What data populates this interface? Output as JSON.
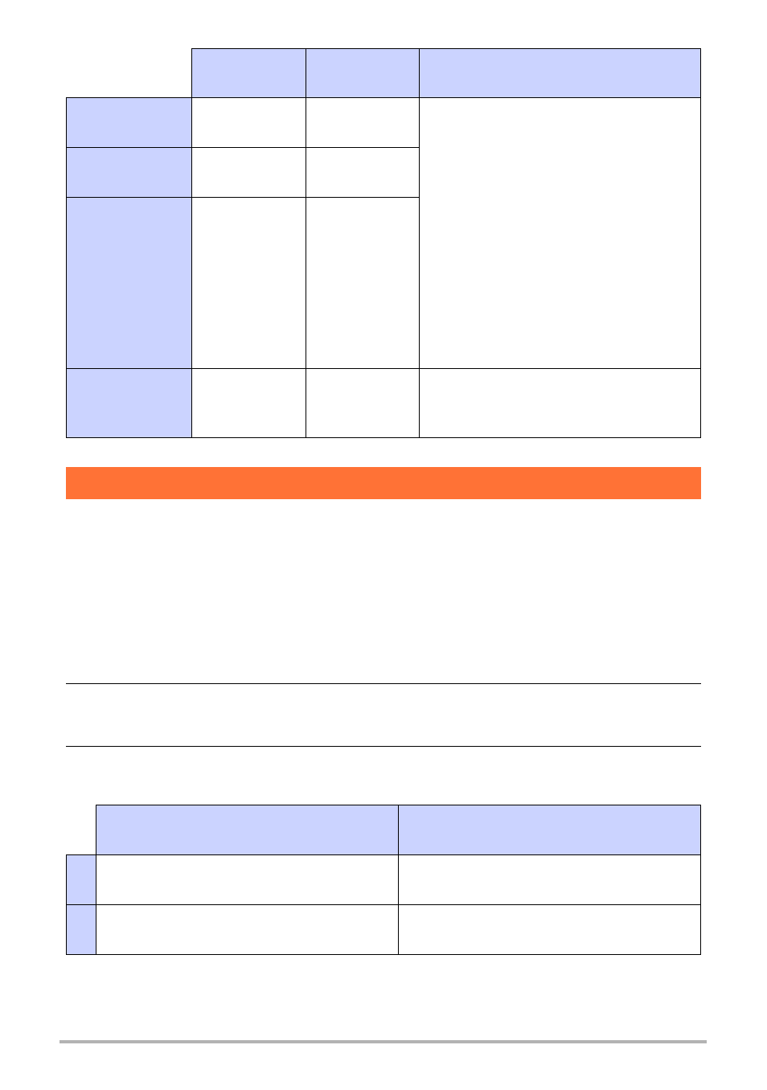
{
  "colors": {
    "header_fill": "#CBD3FF",
    "banner": "#FF7236",
    "footer_rule": "#B3B3B3"
  }
}
